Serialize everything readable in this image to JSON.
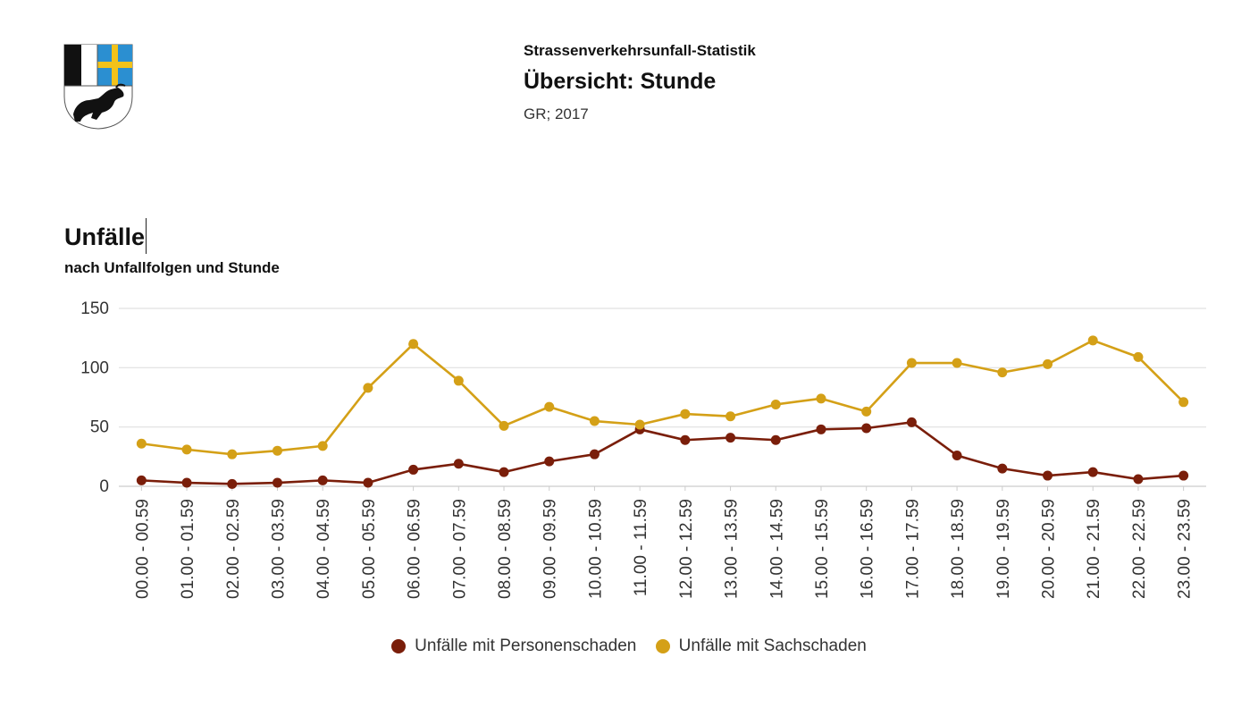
{
  "header": {
    "supertitle": "Strassenverkehrsunfall-Statistik",
    "title": "Übersicht: Stunde",
    "subtitle": "GR; 2017"
  },
  "section": {
    "title": "Unfälle",
    "subtitle": "nach Unfallfolgen und Stunde"
  },
  "colors": {
    "personen": "#7a1e0a",
    "sach": "#d4a017",
    "grid": "#e0e0e0",
    "coat_blue": "#2b8fd1",
    "coat_yellow": "#f2c21a"
  },
  "chart_data": {
    "type": "line",
    "categories": [
      "00.00 - 00.59",
      "01.00 - 01.59",
      "02.00 - 02.59",
      "03.00 - 03.59",
      "04.00 - 04.59",
      "05.00 - 05.59",
      "06.00 - 06.59",
      "07.00 - 07.59",
      "08.00 - 08.59",
      "09.00 - 09.59",
      "10.00 - 10.59",
      "11.00 - 11.59",
      "12.00 - 12.59",
      "13.00 - 13.59",
      "14.00 - 14.59",
      "15.00 - 15.59",
      "16.00 - 16.59",
      "17.00 - 17.59",
      "18.00 - 18.59",
      "19.00 - 19.59",
      "20.00 - 20.59",
      "21.00 - 21.59",
      "22.00 - 22.59",
      "23.00 - 23.59"
    ],
    "series": [
      {
        "name": "Unfälle mit Personenschaden",
        "color": "#7a1e0a",
        "values": [
          5,
          3,
          2,
          3,
          5,
          3,
          14,
          19,
          12,
          21,
          27,
          48,
          39,
          41,
          39,
          48,
          49,
          54,
          26,
          15,
          9,
          12,
          6,
          9
        ]
      },
      {
        "name": "Unfälle mit Sachschaden",
        "color": "#d4a017",
        "values": [
          36,
          31,
          27,
          30,
          34,
          83,
          120,
          89,
          51,
          67,
          55,
          52,
          61,
          59,
          69,
          74,
          63,
          104,
          104,
          96,
          103,
          123,
          109,
          71
        ]
      }
    ],
    "yticks": [
      0,
      50,
      100,
      150
    ],
    "ylim": [
      0,
      150
    ],
    "grid": true,
    "legend": "bottom-center"
  }
}
